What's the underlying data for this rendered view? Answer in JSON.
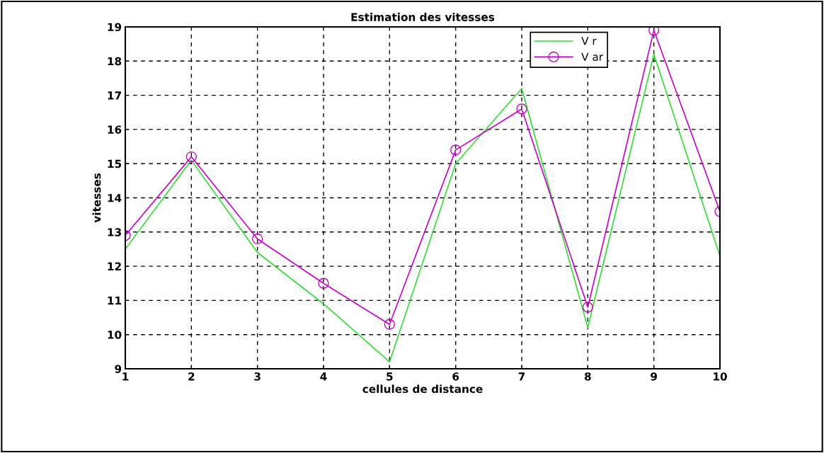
{
  "chart_data": {
    "type": "line",
    "title": "Estimation des vitesses",
    "xlabel": "cellules de distance",
    "ylabel": "vitesses",
    "x": [
      1,
      2,
      3,
      4,
      5,
      6,
      7,
      8,
      9,
      10
    ],
    "series": [
      {
        "name": "V r",
        "color": "#33dd33",
        "marker": "none",
        "values": [
          12.5,
          15.1,
          12.4,
          10.9,
          9.2,
          15.0,
          17.2,
          10.2,
          18.2,
          12.3
        ]
      },
      {
        "name": "V ar",
        "color": "#cc00cc",
        "marker": "circle",
        "values": [
          12.9,
          15.2,
          12.8,
          11.5,
          10.3,
          15.4,
          16.6,
          10.8,
          18.9,
          13.6
        ]
      }
    ],
    "xlim": [
      1,
      10
    ],
    "xticks": [
      1,
      2,
      3,
      4,
      5,
      6,
      7,
      8,
      9,
      10
    ],
    "ylim": [
      9,
      19
    ],
    "yticks": [
      9,
      10,
      11,
      12,
      13,
      14,
      15,
      16,
      17,
      18,
      19
    ],
    "grid": true,
    "legend": "top right",
    "line_style": "solid"
  }
}
